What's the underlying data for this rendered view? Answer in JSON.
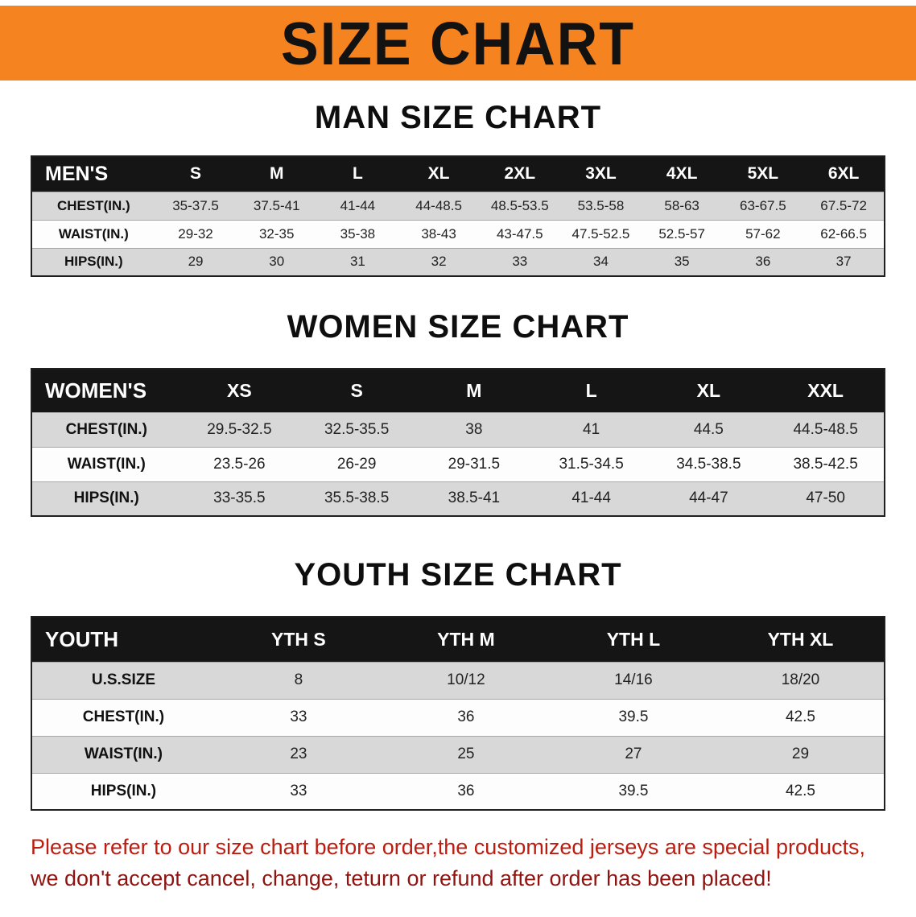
{
  "colors": {
    "banner_bg": "#f5831f",
    "header_bg": "#151515",
    "row_alt_bg": "#d8d8d8",
    "row_bg": "#fdfdfd",
    "note_red_1": "#bb1d10",
    "note_red_2": "#8f1410"
  },
  "banner": {
    "title": "SIZE CHART"
  },
  "sections": {
    "men": {
      "heading": "MAN SIZE CHART"
    },
    "women": {
      "heading": "WOMEN SIZE CHART"
    },
    "youth": {
      "heading": "YOUTH SIZE CHART"
    }
  },
  "tables": {
    "men": {
      "header": [
        "MEN'S",
        "S",
        "M",
        "L",
        "XL",
        "2XL",
        "3XL",
        "4XL",
        "5XL",
        "6XL"
      ],
      "rows": [
        [
          "CHEST(IN.)",
          "35-37.5",
          "37.5-41",
          "41-44",
          "44-48.5",
          "48.5-53.5",
          "53.5-58",
          "58-63",
          "63-67.5",
          "67.5-72"
        ],
        [
          "WAIST(IN.)",
          "29-32",
          "32-35",
          "35-38",
          "38-43",
          "43-47.5",
          "47.5-52.5",
          "52.5-57",
          "57-62",
          "62-66.5"
        ],
        [
          "HIPS(IN.)",
          "29",
          "30",
          "31",
          "32",
          "33",
          "34",
          "35",
          "36",
          "37"
        ]
      ]
    },
    "women": {
      "header": [
        "WOMEN'S",
        "XS",
        "S",
        "M",
        "L",
        "XL",
        "XXL"
      ],
      "rows": [
        [
          "CHEST(IN.)",
          "29.5-32.5",
          "32.5-35.5",
          "38",
          "41",
          "44.5",
          "44.5-48.5"
        ],
        [
          "WAIST(IN.)",
          "23.5-26",
          "26-29",
          "29-31.5",
          "31.5-34.5",
          "34.5-38.5",
          "38.5-42.5"
        ],
        [
          "HIPS(IN.)",
          "33-35.5",
          "35.5-38.5",
          "38.5-41",
          "41-44",
          "44-47",
          "47-50"
        ]
      ]
    },
    "youth": {
      "header": [
        "YOUTH",
        "YTH S",
        "YTH M",
        "YTH L",
        "YTH XL"
      ],
      "rows": [
        [
          "U.S.SIZE",
          "8",
          "10/12",
          "14/16",
          "18/20"
        ],
        [
          "CHEST(IN.)",
          "33",
          "36",
          "39.5",
          "42.5"
        ],
        [
          "WAIST(IN.)",
          "23",
          "25",
          "27",
          "29"
        ],
        [
          "HIPS(IN.)",
          "33",
          "36",
          "39.5",
          "42.5"
        ]
      ]
    }
  },
  "note": {
    "line1": "Please refer to our size chart before order,the customized jerseys are special products,",
    "line2": "we don't accept cancel, change, teturn or refund after order has been placed!"
  }
}
